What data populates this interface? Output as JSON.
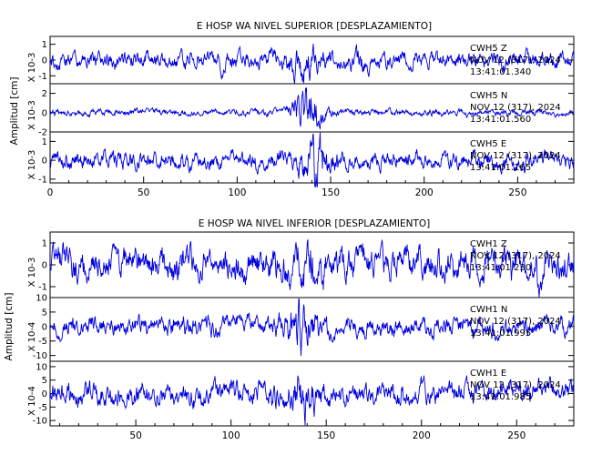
{
  "chart_data": [
    {
      "type": "line",
      "title": "E HOSP WA NIVEL SUPERIOR [DESPLAZAMIENTO]",
      "ylabel": "Amplitud [cm]",
      "xlim": [
        0,
        280
      ],
      "x_ticks": [
        0,
        50,
        100,
        150,
        200,
        250
      ],
      "line_color": "#0000e0",
      "panels": [
        {
          "scale_label": "X 10-3",
          "ylim": [
            -1.5,
            1.5
          ],
          "y_ticks": [
            -1,
            0,
            1
          ],
          "station": "CWH5",
          "component": "Z",
          "date": "NOV 12 (317), 2024",
          "time": "13:41:01.340",
          "seed": 11,
          "base_amp": 0.42,
          "burst": [
            [
              137,
              0.55,
              8
            ],
            [
              165,
              0.3,
              4
            ]
          ],
          "dips": [
            [
              92,
              -1.2
            ]
          ]
        },
        {
          "scale_label": "X 10-3",
          "ylim": [
            -2,
            3
          ],
          "y_ticks": [
            -2,
            0,
            2
          ],
          "station": "CWH5",
          "component": "N",
          "date": "NOV 12 (317), 2024",
          "time": "13:41:01.560",
          "seed": 23,
          "base_amp": 0.25,
          "burst": [
            [
              138,
              2.2,
              7
            ]
          ],
          "dips": []
        },
        {
          "scale_label": "X 10-3",
          "ylim": [
            -1.2,
            1.5
          ],
          "y_ticks": [
            -1,
            0,
            1
          ],
          "station": "CWH5",
          "component": "E",
          "date": "NOV 12 (317), 2024",
          "time": "13:41:01.165",
          "seed": 37,
          "base_amp": 0.35,
          "burst": [
            [
              142,
              0.9,
              7
            ]
          ],
          "dips": []
        }
      ]
    },
    {
      "type": "line",
      "title": "E HOSP WA NIVEL INFERIOR [DESPLAZAMIENTO]",
      "ylabel": "Amplitud [cm]",
      "xlim": [
        5,
        280
      ],
      "x_ticks": [
        50,
        100,
        150,
        200,
        250
      ],
      "line_color": "#0000e0",
      "panels": [
        {
          "scale_label": "X 10-3",
          "ylim": [
            -1.5,
            1.5
          ],
          "y_ticks": [
            -1,
            0,
            1
          ],
          "station": "CWH1",
          "component": "Z",
          "date": "NOV 12 (317), 2024",
          "time": "13:41:01.230",
          "seed": 51,
          "base_amp": 0.55,
          "burst": [
            [
              140,
              0.3,
              10
            ]
          ],
          "dips": [
            [
              262,
              -1.2
            ]
          ]
        },
        {
          "scale_label": "X 10-4",
          "ylim": [
            -12,
            10
          ],
          "y_ticks": [
            -10,
            -5,
            0,
            5,
            10
          ],
          "station": "CWH1",
          "component": "N",
          "date": "NOV 12 (317), 2024",
          "time": "13:41:01.995",
          "seed": 67,
          "base_amp": 2.6,
          "burst": [
            [
              137,
              5,
              7
            ]
          ],
          "dips": []
        },
        {
          "scale_label": "X 10-4",
          "ylim": [
            -12,
            12
          ],
          "y_ticks": [
            -10,
            -5,
            0,
            5,
            10
          ],
          "station": "CWH1",
          "component": "E",
          "date": "NOV 12 (317), 2024",
          "time": "13:41:01.985",
          "seed": 83,
          "base_amp": 3.2,
          "burst": [
            [
              138,
              4,
              9
            ]
          ],
          "dips": []
        }
      ]
    }
  ]
}
